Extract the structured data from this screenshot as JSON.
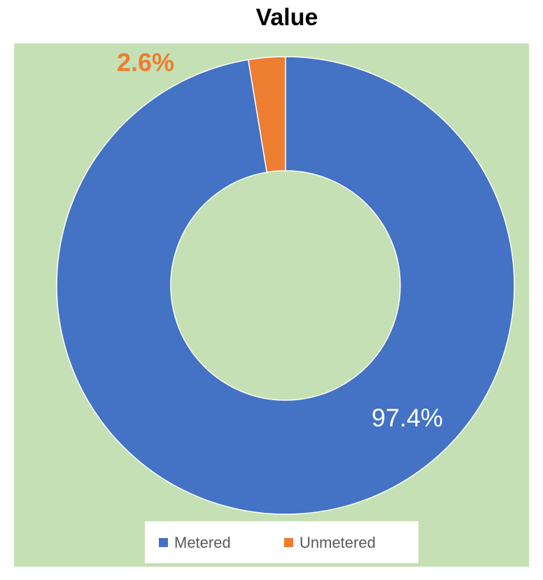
{
  "chart_data": {
    "type": "donut",
    "title": "Value",
    "categories": [
      "Metered",
      "Unmetered"
    ],
    "values": [
      97.4,
      2.6
    ],
    "value_labels": [
      "97.4%",
      "2.6%"
    ],
    "colors": [
      "#4472C4",
      "#ED7D31"
    ],
    "legend": "bottom"
  }
}
